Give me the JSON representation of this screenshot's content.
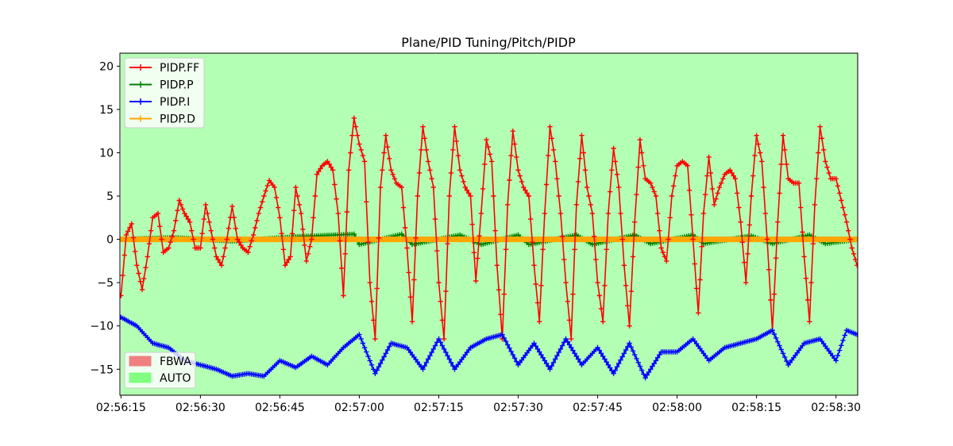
{
  "chart_data": {
    "type": "line",
    "title": "Plane/PID Tuning/Pitch/PIDP",
    "xlabel": "",
    "ylabel": "",
    "x_unit": "seconds",
    "x_range": [
      "02:56:15",
      "02:58:34"
    ],
    "x_tick_labels": [
      "02:56:15",
      "02:56:30",
      "02:56:45",
      "02:57:00",
      "02:57:15",
      "02:57:30",
      "02:57:45",
      "02:58:00",
      "02:58:15",
      "02:58:30"
    ],
    "ylim": [
      -18,
      21.5
    ],
    "y_ticks": [
      20,
      15,
      10,
      5,
      0,
      -5,
      -10,
      -15
    ],
    "y_tick_labels": [
      "20",
      "15",
      "10",
      "5",
      "0",
      "−5",
      "−10",
      "−15"
    ],
    "grid": false,
    "legend_placement": "upper-left",
    "series": [
      {
        "name": "PIDP.FF",
        "color": "#ff0000",
        "marker": "plus",
        "points": [
          [
            "02:56:15",
            -6.5
          ],
          [
            "02:56:16",
            0.5
          ],
          [
            "02:56:17",
            1.8
          ],
          [
            "02:56:18",
            -3.0
          ],
          [
            "02:56:19",
            -5.8
          ],
          [
            "02:56:20",
            -2.0
          ],
          [
            "02:56:21",
            2.5
          ],
          [
            "02:56:22",
            3.0
          ],
          [
            "02:56:23",
            -1.5
          ],
          [
            "02:56:24",
            -1.0
          ],
          [
            "02:56:25",
            1.0
          ],
          [
            "02:56:26",
            4.5
          ],
          [
            "02:56:27",
            3.0
          ],
          [
            "02:56:28",
            2.0
          ],
          [
            "02:56:29",
            -1.0
          ],
          [
            "02:56:30",
            -1.0
          ],
          [
            "02:56:31",
            4.0
          ],
          [
            "02:56:32",
            1.0
          ],
          [
            "02:56:33",
            -2.0
          ],
          [
            "02:56:34",
            -3.0
          ],
          [
            "02:56:35",
            0.0
          ],
          [
            "02:56:36",
            3.8
          ],
          [
            "02:56:37",
            0.0
          ],
          [
            "02:56:38",
            -1.0
          ],
          [
            "02:56:39",
            -1.5
          ],
          [
            "02:56:40",
            0.5
          ],
          [
            "02:56:41",
            3.0
          ],
          [
            "02:56:42",
            5.0
          ],
          [
            "02:56:43",
            6.8
          ],
          [
            "02:56:44",
            6.0
          ],
          [
            "02:56:45",
            2.5
          ],
          [
            "02:56:46",
            -3.0
          ],
          [
            "02:56:47",
            -2.0
          ],
          [
            "02:56:48",
            6.0
          ],
          [
            "02:56:49",
            3.0
          ],
          [
            "02:56:50",
            -2.5
          ],
          [
            "02:56:51",
            0.0
          ],
          [
            "02:56:52",
            7.5
          ],
          [
            "02:56:53",
            8.5
          ],
          [
            "02:56:54",
            9.0
          ],
          [
            "02:56:55",
            8.0
          ],
          [
            "02:56:56",
            3.0
          ],
          [
            "02:56:57",
            -6.5
          ],
          [
            "02:56:58",
            8.0
          ],
          [
            "02:56:59",
            14.0
          ],
          [
            "02:57:00",
            11.0
          ],
          [
            "02:57:01",
            9.0
          ],
          [
            "02:57:02",
            -5.0
          ],
          [
            "02:57:03",
            -11.5
          ],
          [
            "02:57:04",
            6.0
          ],
          [
            "02:57:05",
            12.0
          ],
          [
            "02:57:06",
            8.0
          ],
          [
            "02:57:07",
            6.5
          ],
          [
            "02:57:08",
            6.0
          ],
          [
            "02:57:09",
            -1.0
          ],
          [
            "02:57:10",
            -9.5
          ],
          [
            "02:57:11",
            5.0
          ],
          [
            "02:57:12",
            13.0
          ],
          [
            "02:57:13",
            9.0
          ],
          [
            "02:57:14",
            6.0
          ],
          [
            "02:57:15",
            -5.0
          ],
          [
            "02:57:16",
            -11.5
          ],
          [
            "02:57:17",
            5.0
          ],
          [
            "02:57:18",
            13.0
          ],
          [
            "02:57:19",
            8.0
          ],
          [
            "02:57:20",
            6.0
          ],
          [
            "02:57:21",
            5.0
          ],
          [
            "02:57:22",
            -4.8
          ],
          [
            "02:57:23",
            3.0
          ],
          [
            "02:57:24",
            11.5
          ],
          [
            "02:57:25",
            9.0
          ],
          [
            "02:57:26",
            -3.0
          ],
          [
            "02:57:27",
            -11.5
          ],
          [
            "02:57:28",
            4.0
          ],
          [
            "02:57:29",
            12.5
          ],
          [
            "02:57:30",
            8.0
          ],
          [
            "02:57:31",
            6.0
          ],
          [
            "02:57:32",
            5.0
          ],
          [
            "02:57:33",
            -3.0
          ],
          [
            "02:57:34",
            -9.5
          ],
          [
            "02:57:35",
            3.0
          ],
          [
            "02:57:36",
            13.0
          ],
          [
            "02:57:37",
            9.0
          ],
          [
            "02:57:38",
            3.0
          ],
          [
            "02:57:39",
            -5.0
          ],
          [
            "02:57:40",
            -11.5
          ],
          [
            "02:57:41",
            4.0
          ],
          [
            "02:57:42",
            12.0
          ],
          [
            "02:57:43",
            6.0
          ],
          [
            "02:57:44",
            3.0
          ],
          [
            "02:57:45",
            -5.0
          ],
          [
            "02:57:46",
            -9.5
          ],
          [
            "02:57:47",
            3.0
          ],
          [
            "02:57:48",
            10.5
          ],
          [
            "02:57:49",
            6.0
          ],
          [
            "02:57:50",
            -3.0
          ],
          [
            "02:57:51",
            -10.0
          ],
          [
            "02:57:52",
            2.0
          ],
          [
            "02:57:53",
            11.5
          ],
          [
            "02:57:54",
            7.0
          ],
          [
            "02:57:55",
            6.5
          ],
          [
            "02:57:56",
            5.0
          ],
          [
            "02:57:57",
            -1.0
          ],
          [
            "02:57:58",
            -2.5
          ],
          [
            "02:57:59",
            5.0
          ],
          [
            "02:58:00",
            8.5
          ],
          [
            "02:58:01",
            9.0
          ],
          [
            "02:58:02",
            8.5
          ],
          [
            "02:58:03",
            0.0
          ],
          [
            "02:58:04",
            -8.5
          ],
          [
            "02:58:05",
            3.0
          ],
          [
            "02:58:06",
            9.5
          ],
          [
            "02:58:07",
            4.0
          ],
          [
            "02:58:08",
            6.0
          ],
          [
            "02:58:09",
            7.5
          ],
          [
            "02:58:10",
            8.0
          ],
          [
            "02:58:11",
            7.0
          ],
          [
            "02:58:12",
            2.0
          ],
          [
            "02:58:13",
            -5.0
          ],
          [
            "02:58:14",
            5.0
          ],
          [
            "02:58:15",
            12.0
          ],
          [
            "02:58:16",
            9.0
          ],
          [
            "02:58:17",
            0.0
          ],
          [
            "02:58:18",
            -10.5
          ],
          [
            "02:58:19",
            2.0
          ],
          [
            "02:58:20",
            12.0
          ],
          [
            "02:58:21",
            7.0
          ],
          [
            "02:58:22",
            6.5
          ],
          [
            "02:58:23",
            6.5
          ],
          [
            "02:58:24",
            -2.0
          ],
          [
            "02:58:25",
            -9.5
          ],
          [
            "02:58:26",
            4.0
          ],
          [
            "02:58:27",
            13.0
          ],
          [
            "02:58:28",
            9.0
          ],
          [
            "02:58:29",
            7.0
          ],
          [
            "02:58:30",
            7.0
          ],
          [
            "02:58:31",
            4.5
          ],
          [
            "02:58:32",
            2.0
          ],
          [
            "02:58:33",
            -1.0
          ],
          [
            "02:58:34",
            -3.0
          ]
        ]
      },
      {
        "name": "PIDP.P",
        "color": "#008000",
        "marker": "plus",
        "points": [
          [
            "02:56:15",
            0.0
          ],
          [
            "02:56:25",
            0.2
          ],
          [
            "02:56:36",
            -0.2
          ],
          [
            "02:56:48",
            0.3
          ],
          [
            "02:56:59",
            0.6
          ],
          [
            "02:57:00",
            -0.6
          ],
          [
            "02:57:08",
            0.6
          ],
          [
            "02:57:10",
            -0.6
          ],
          [
            "02:57:19",
            0.5
          ],
          [
            "02:57:23",
            -0.6
          ],
          [
            "02:57:30",
            0.5
          ],
          [
            "02:57:32",
            -0.6
          ],
          [
            "02:57:41",
            0.5
          ],
          [
            "02:57:44",
            -0.6
          ],
          [
            "02:57:52",
            0.5
          ],
          [
            "02:57:55",
            -0.5
          ],
          [
            "02:58:03",
            0.5
          ],
          [
            "02:58:05",
            -0.5
          ],
          [
            "02:58:14",
            0.4
          ],
          [
            "02:58:18",
            -0.5
          ],
          [
            "02:58:25",
            0.5
          ],
          [
            "02:58:28",
            -0.5
          ],
          [
            "02:58:34",
            0.0
          ]
        ]
      },
      {
        "name": "PIDP.I",
        "color": "#0000ff",
        "marker": "plus",
        "points": [
          [
            "02:56:15",
            -9.0
          ],
          [
            "02:56:18",
            -10.0
          ],
          [
            "02:56:21",
            -12.0
          ],
          [
            "02:56:24",
            -12.5
          ],
          [
            "02:56:27",
            -14.0
          ],
          [
            "02:56:30",
            -14.5
          ],
          [
            "02:56:33",
            -15.0
          ],
          [
            "02:56:36",
            -15.8
          ],
          [
            "02:56:39",
            -15.5
          ],
          [
            "02:56:42",
            -15.8
          ],
          [
            "02:56:45",
            -14.0
          ],
          [
            "02:56:48",
            -14.8
          ],
          [
            "02:56:51",
            -13.5
          ],
          [
            "02:56:54",
            -14.5
          ],
          [
            "02:56:57",
            -12.5
          ],
          [
            "02:57:00",
            -11.0
          ],
          [
            "02:57:03",
            -15.5
          ],
          [
            "02:57:06",
            -12.0
          ],
          [
            "02:57:09",
            -12.5
          ],
          [
            "02:57:12",
            -15.0
          ],
          [
            "02:57:15",
            -11.5
          ],
          [
            "02:57:18",
            -15.0
          ],
          [
            "02:57:21",
            -12.5
          ],
          [
            "02:57:24",
            -11.5
          ],
          [
            "02:57:27",
            -11.0
          ],
          [
            "02:57:30",
            -14.5
          ],
          [
            "02:57:33",
            -12.0
          ],
          [
            "02:57:36",
            -15.0
          ],
          [
            "02:57:39",
            -11.5
          ],
          [
            "02:57:42",
            -14.5
          ],
          [
            "02:57:45",
            -12.5
          ],
          [
            "02:57:48",
            -15.5
          ],
          [
            "02:57:51",
            -12.0
          ],
          [
            "02:57:54",
            -16.0
          ],
          [
            "02:57:57",
            -13.0
          ],
          [
            "02:58:00",
            -13.0
          ],
          [
            "02:58:03",
            -11.5
          ],
          [
            "02:58:06",
            -14.0
          ],
          [
            "02:58:09",
            -12.5
          ],
          [
            "02:58:12",
            -12.0
          ],
          [
            "02:58:15",
            -11.5
          ],
          [
            "02:58:18",
            -10.5
          ],
          [
            "02:58:21",
            -14.5
          ],
          [
            "02:58:24",
            -12.0
          ],
          [
            "02:58:27",
            -11.5
          ],
          [
            "02:58:30",
            -14.0
          ],
          [
            "02:58:32",
            -10.5
          ],
          [
            "02:58:34",
            -11.0
          ]
        ]
      },
      {
        "name": "PIDP.D",
        "color": "#ffa500",
        "marker": "plus",
        "points": [
          [
            "02:56:15",
            0.0
          ],
          [
            "02:58:34",
            0.0
          ]
        ]
      }
    ],
    "mode_legend": [
      {
        "name": "FBWA",
        "color": "#f08080"
      },
      {
        "name": "AUTO",
        "color": "#80ff80"
      }
    ],
    "mode_spans": [
      {
        "mode": "AUTO",
        "start": "02:56:15",
        "end": "02:58:34"
      },
      {
        "mode": "FBWA",
        "start": "02:58:34",
        "end": "02:58:34"
      }
    ]
  }
}
